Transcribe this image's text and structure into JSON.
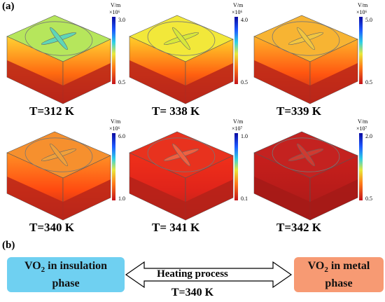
{
  "panel_a_label": "(a)",
  "panel_b_label": "(b)",
  "colorbar_unit": "V/m",
  "panels": [
    {
      "temperature": "T=312 K",
      "scale": "×10⁶",
      "max": "3.0",
      "min": "0.5",
      "top_color": "#b6e65c",
      "side_top": "#ffd233",
      "side_mid": "#ff6a10",
      "base": "#b8261a",
      "cross": "#5fd6b8"
    },
    {
      "temperature": "T= 338 K",
      "scale": "×10⁶",
      "max": "4.0",
      "min": "0.5",
      "top_color": "#f2e83a",
      "side_top": "#ffd02a",
      "side_mid": "#ff6010",
      "base": "#b8261a",
      "cross": "#d8e83a"
    },
    {
      "temperature": "T=339 K",
      "scale": "×10⁶",
      "max": "5.0",
      "min": "0.5",
      "top_color": "#f7b433",
      "side_top": "#ffb32a",
      "side_mid": "#ff5510",
      "base": "#b8261a",
      "cross": "#f2c640"
    },
    {
      "temperature": "T=340 K",
      "scale": "×10⁶",
      "max": "6.0",
      "min": "1.0",
      "top_color": "#f6902e",
      "side_top": "#ff9025",
      "side_mid": "#ff4a10",
      "base": "#b8261a",
      "cross": "#f0a03a"
    },
    {
      "temperature": "T= 341 K",
      "scale": "×10⁷",
      "max": "1.0",
      "min": "0.1",
      "top_color": "#e8321e",
      "side_top": "#f0301a",
      "side_mid": "#e0241a",
      "base": "#b3221a",
      "cross": "#f06040"
    },
    {
      "temperature": "T=342 K",
      "scale": "×10⁷",
      "max": "2.0",
      "min": "0.5",
      "top_color": "#c42220",
      "side_top": "#c81f1c",
      "side_mid": "#b81c1a",
      "base": "#a51a18",
      "cross": "#d03a30"
    }
  ],
  "process": {
    "left_box_line1_main": "VO",
    "left_box_line1_sub": "2",
    "left_box_line1_rest": " in insulation",
    "left_box_line2": "phase",
    "right_box_line1_main": "VO",
    "right_box_line1_sub": "2",
    "right_box_line1_rest": " in metal",
    "right_box_line2": "phase",
    "arrow_label": "Heating process",
    "arrow_temperature": "T=340 K",
    "left_box_color": "#6fd0f1",
    "right_box_color": "#f79a73"
  }
}
